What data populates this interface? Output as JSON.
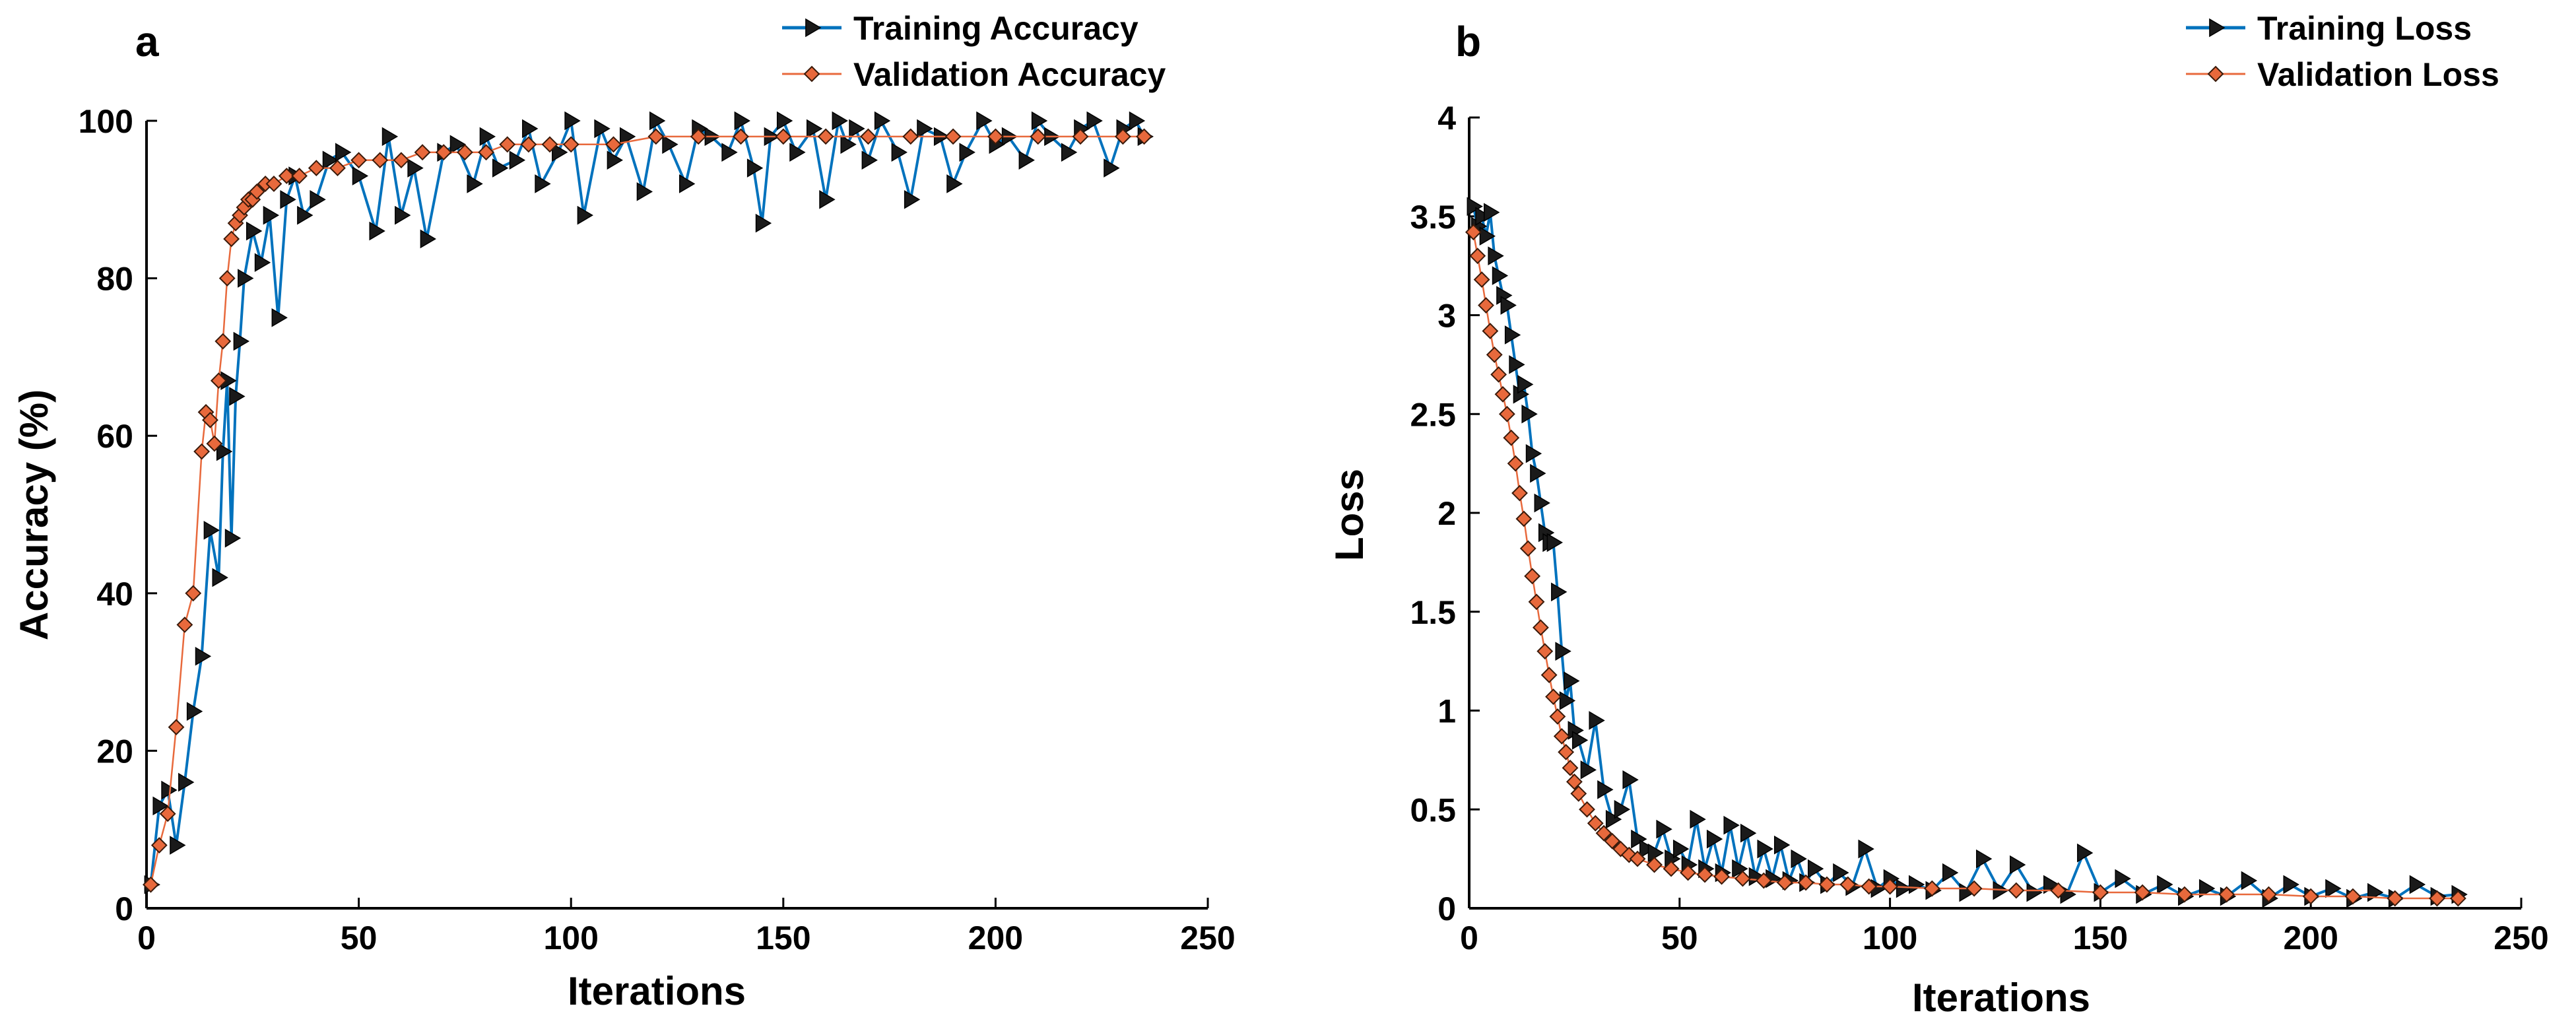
{
  "chart_data": [
    {
      "panel": "a",
      "type": "line",
      "title": "",
      "xlabel": "Iterations",
      "ylabel": "Accuracy (%)",
      "xlim": [
        0,
        250
      ],
      "ylim": [
        0,
        100
      ],
      "xticks": [
        0,
        50,
        100,
        150,
        200,
        250
      ],
      "yticks": [
        0,
        20,
        40,
        60,
        80,
        100
      ],
      "grid": false,
      "legend_position": "top-right",
      "series": [
        {
          "name": "Training Accuracy",
          "color": "#0072BD",
          "marker": "triangle-right",
          "marker_color": "#1a1a1a",
          "x": [
            1,
            3,
            5,
            7,
            9,
            11,
            13,
            15,
            17,
            18,
            19,
            20,
            21,
            22,
            23,
            25,
            27,
            29,
            31,
            33,
            35,
            37,
            40,
            43,
            46,
            50,
            54,
            57,
            60,
            63,
            66,
            70,
            73,
            77,
            80,
            83,
            87,
            90,
            93,
            97,
            100,
            103,
            107,
            110,
            113,
            117,
            120,
            123,
            127,
            130,
            133,
            137,
            140,
            143,
            145,
            147,
            150,
            153,
            157,
            160,
            163,
            165,
            167,
            170,
            173,
            177,
            180,
            183,
            187,
            190,
            193,
            197,
            200,
            203,
            207,
            210,
            213,
            217,
            220,
            223,
            227,
            230,
            233,
            235
          ],
          "y": [
            3,
            13,
            15,
            8,
            16,
            25,
            32,
            48,
            42,
            58,
            67,
            47,
            65,
            72,
            80,
            86,
            82,
            88,
            75,
            90,
            93,
            88,
            90,
            95,
            96,
            93,
            86,
            98,
            88,
            94,
            85,
            96,
            97,
            92,
            98,
            94,
            95,
            99,
            92,
            96,
            100,
            88,
            99,
            95,
            98,
            91,
            100,
            97,
            92,
            99,
            98,
            96,
            100,
            94,
            87,
            98,
            100,
            96,
            99,
            90,
            100,
            97,
            99,
            95,
            100,
            96,
            90,
            99,
            98,
            92,
            96,
            100,
            97,
            98,
            95,
            100,
            98,
            96,
            99,
            100,
            94,
            99,
            100,
            98
          ]
        },
        {
          "name": "Validation Accuracy",
          "color": "#E8693C",
          "marker": "diamond",
          "marker_color": "#E8693C",
          "x": [
            1,
            3,
            5,
            7,
            9,
            11,
            13,
            14,
            15,
            16,
            17,
            18,
            19,
            20,
            21,
            22,
            23,
            24,
            25,
            26,
            28,
            30,
            33,
            36,
            40,
            45,
            50,
            55,
            60,
            65,
            70,
            75,
            80,
            85,
            90,
            95,
            100,
            110,
            120,
            130,
            140,
            150,
            160,
            170,
            180,
            190,
            200,
            210,
            220,
            230,
            235
          ],
          "y": [
            3,
            8,
            12,
            23,
            36,
            40,
            58,
            63,
            62,
            59,
            67,
            72,
            80,
            85,
            87,
            88,
            89,
            90,
            90,
            91,
            92,
            92,
            93,
            93,
            94,
            94,
            95,
            95,
            95,
            96,
            96,
            96,
            96,
            97,
            97,
            97,
            97,
            97,
            98,
            98,
            98,
            98,
            98,
            98,
            98,
            98,
            98,
            98,
            98,
            98,
            98
          ]
        }
      ]
    },
    {
      "panel": "b",
      "type": "line",
      "title": "",
      "xlabel": "Iterations",
      "ylabel": "Loss",
      "xlim": [
        0,
        250
      ],
      "ylim": [
        0,
        4
      ],
      "xticks": [
        0,
        50,
        100,
        150,
        200,
        250
      ],
      "yticks": [
        0,
        0.5,
        1,
        1.5,
        2,
        2.5,
        3,
        3.5,
        4
      ],
      "yticklabels": [
        "0",
        "0.5",
        "1",
        "1.5",
        "2",
        "2.5",
        "3",
        "3.5",
        "4"
      ],
      "grid": false,
      "legend_position": "top-right",
      "series": [
        {
          "name": "Training Loss",
          "color": "#0072BD",
          "marker": "triangle-right",
          "marker_color": "#1a1a1a",
          "x": [
            1,
            2,
            3,
            4,
            5,
            6,
            7,
            8,
            9,
            10,
            11,
            12,
            13,
            14,
            15,
            16,
            17,
            18,
            19,
            20,
            21,
            22,
            23,
            24,
            25,
            26,
            28,
            30,
            32,
            34,
            36,
            38,
            40,
            42,
            44,
            46,
            48,
            50,
            52,
            54,
            56,
            58,
            60,
            62,
            64,
            66,
            68,
            70,
            72,
            74,
            76,
            78,
            80,
            82,
            85,
            88,
            91,
            94,
            97,
            100,
            103,
            106,
            110,
            114,
            118,
            122,
            126,
            130,
            134,
            138,
            142,
            146,
            150,
            155,
            160,
            165,
            170,
            175,
            180,
            185,
            190,
            195,
            200,
            205,
            210,
            215,
            220,
            225,
            230,
            235
          ],
          "y": [
            3.55,
            3.45,
            3.5,
            3.4,
            3.52,
            3.3,
            3.2,
            3.1,
            3.05,
            2.9,
            2.75,
            2.6,
            2.65,
            2.5,
            2.3,
            2.2,
            2.05,
            1.9,
            1.85,
            1.85,
            1.6,
            1.3,
            1.05,
            1.15,
            0.9,
            0.85,
            0.7,
            0.95,
            0.6,
            0.45,
            0.5,
            0.65,
            0.35,
            0.3,
            0.28,
            0.4,
            0.25,
            0.3,
            0.22,
            0.45,
            0.2,
            0.35,
            0.18,
            0.42,
            0.2,
            0.38,
            0.16,
            0.3,
            0.15,
            0.32,
            0.14,
            0.25,
            0.13,
            0.2,
            0.12,
            0.18,
            0.11,
            0.3,
            0.1,
            0.15,
            0.1,
            0.12,
            0.09,
            0.18,
            0.08,
            0.25,
            0.09,
            0.22,
            0.08,
            0.12,
            0.07,
            0.28,
            0.08,
            0.15,
            0.07,
            0.12,
            0.06,
            0.1,
            0.06,
            0.14,
            0.05,
            0.12,
            0.06,
            0.1,
            0.05,
            0.08,
            0.05,
            0.12,
            0.06,
            0.07
          ]
        },
        {
          "name": "Validation Loss",
          "color": "#E8693C",
          "marker": "diamond",
          "marker_color": "#E8693C",
          "x": [
            1,
            2,
            3,
            4,
            5,
            6,
            7,
            8,
            9,
            10,
            11,
            12,
            13,
            14,
            15,
            16,
            17,
            18,
            19,
            20,
            21,
            22,
            23,
            24,
            25,
            26,
            28,
            30,
            32,
            34,
            36,
            38,
            40,
            44,
            48,
            52,
            56,
            60,
            65,
            70,
            75,
            80,
            85,
            90,
            95,
            100,
            110,
            120,
            130,
            140,
            150,
            160,
            170,
            180,
            190,
            200,
            210,
            220,
            230,
            235
          ],
          "y": [
            3.42,
            3.3,
            3.18,
            3.05,
            2.92,
            2.8,
            2.7,
            2.6,
            2.5,
            2.38,
            2.25,
            2.1,
            1.97,
            1.82,
            1.68,
            1.55,
            1.42,
            1.3,
            1.18,
            1.07,
            0.97,
            0.87,
            0.79,
            0.71,
            0.64,
            0.58,
            0.5,
            0.43,
            0.38,
            0.34,
            0.3,
            0.27,
            0.25,
            0.22,
            0.2,
            0.18,
            0.17,
            0.16,
            0.15,
            0.14,
            0.13,
            0.13,
            0.12,
            0.12,
            0.11,
            0.11,
            0.1,
            0.1,
            0.09,
            0.09,
            0.08,
            0.08,
            0.07,
            0.07,
            0.07,
            0.06,
            0.06,
            0.05,
            0.05,
            0.05
          ]
        }
      ]
    }
  ]
}
